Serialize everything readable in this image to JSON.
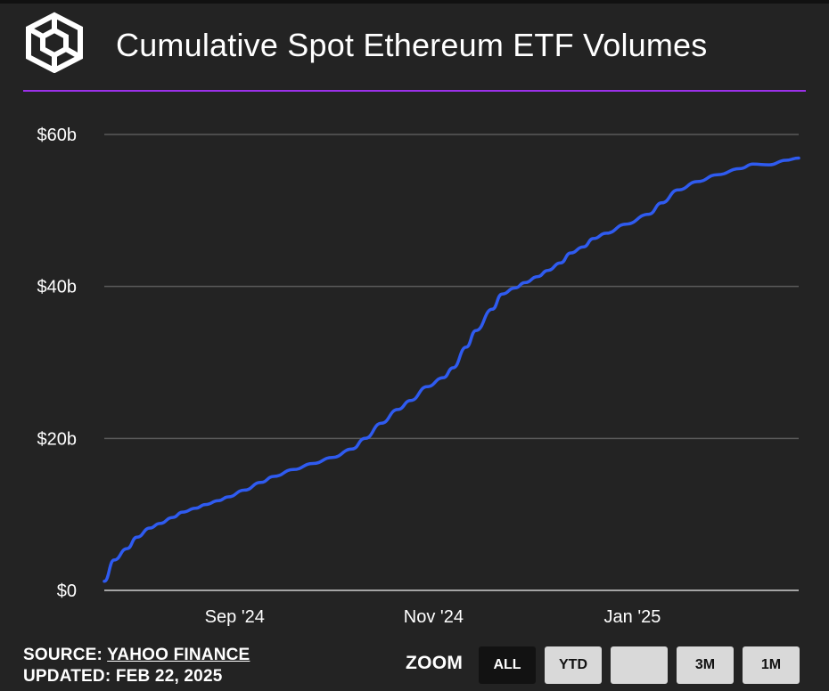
{
  "header": {
    "title": "Cumulative Spot Ethereum ETF Volumes",
    "logo_icon": "the-block-cube-icon"
  },
  "colors": {
    "background": "#232323",
    "line": "#2f5bf0",
    "divider": "#9b30e8",
    "gridline": "#5a5a5a",
    "text": "#ffffff"
  },
  "footer": {
    "source_prefix": "SOURCE:",
    "source_name": "YAHOO FINANCE",
    "updated_prefix": "UPDATED:",
    "updated_date": "FEB 22, 2025"
  },
  "zoom": {
    "label": "ZOOM",
    "buttons": [
      {
        "label": "ALL",
        "active": true
      },
      {
        "label": "YTD",
        "active": false
      },
      {
        "label": "",
        "active": false
      },
      {
        "label": "3M",
        "active": false
      },
      {
        "label": "1M",
        "active": false
      }
    ]
  },
  "chart_data": {
    "type": "line",
    "title": "Cumulative Spot Ethereum ETF Volumes",
    "xlabel": "",
    "ylabel": "",
    "grid": true,
    "legend": "none",
    "ylim": [
      0,
      60
    ],
    "y_ticks": [
      {
        "value": 0,
        "label": "$0"
      },
      {
        "value": 20,
        "label": "$20b"
      },
      {
        "value": 40,
        "label": "$40b"
      },
      {
        "value": 60,
        "label": "$60b"
      }
    ],
    "xlim": [
      "2024-07-23",
      "2025-02-21"
    ],
    "x_ticks": [
      {
        "date": "2024-09-01",
        "label": "Sep '24"
      },
      {
        "date": "2024-11-01",
        "label": "Nov '24"
      },
      {
        "date": "2025-01-01",
        "label": "Jan '25"
      }
    ],
    "series": [
      {
        "x": [
          "2024-07-23",
          "2024-07-26",
          "2024-07-30",
          "2024-08-02",
          "2024-08-06",
          "2024-08-09",
          "2024-08-13",
          "2024-08-16",
          "2024-08-20",
          "2024-08-23",
          "2024-08-27",
          "2024-08-30",
          "2024-09-04",
          "2024-09-09",
          "2024-09-13",
          "2024-09-19",
          "2024-09-25",
          "2024-10-01",
          "2024-10-07",
          "2024-10-11",
          "2024-10-16",
          "2024-10-21",
          "2024-10-25",
          "2024-10-30",
          "2024-11-04",
          "2024-11-07",
          "2024-11-11",
          "2024-11-14",
          "2024-11-19",
          "2024-11-22",
          "2024-11-26",
          "2024-11-29",
          "2024-12-03",
          "2024-12-06",
          "2024-12-10",
          "2024-12-13",
          "2024-12-17",
          "2024-12-20",
          "2024-12-24",
          "2024-12-30",
          "2025-01-06",
          "2025-01-10",
          "2025-01-15",
          "2025-01-21",
          "2025-01-27",
          "2025-02-03",
          "2025-02-07",
          "2025-02-12",
          "2025-02-17",
          "2025-02-21"
        ],
        "values": [
          1.2,
          4.0,
          5.5,
          7.0,
          8.2,
          8.8,
          9.6,
          10.3,
          10.8,
          11.3,
          11.8,
          12.3,
          13.2,
          14.2,
          15.0,
          15.9,
          16.7,
          17.5,
          18.6,
          20.0,
          22.0,
          23.8,
          25.0,
          26.8,
          28.0,
          29.3,
          32.0,
          34.2,
          37.0,
          39.0,
          39.8,
          40.5,
          41.3,
          42.1,
          43.1,
          44.4,
          45.2,
          46.3,
          47.0,
          48.2,
          49.5,
          51.0,
          52.7,
          53.8,
          54.7,
          55.5,
          56.1,
          56.0,
          56.6,
          56.9
        ]
      }
    ]
  }
}
